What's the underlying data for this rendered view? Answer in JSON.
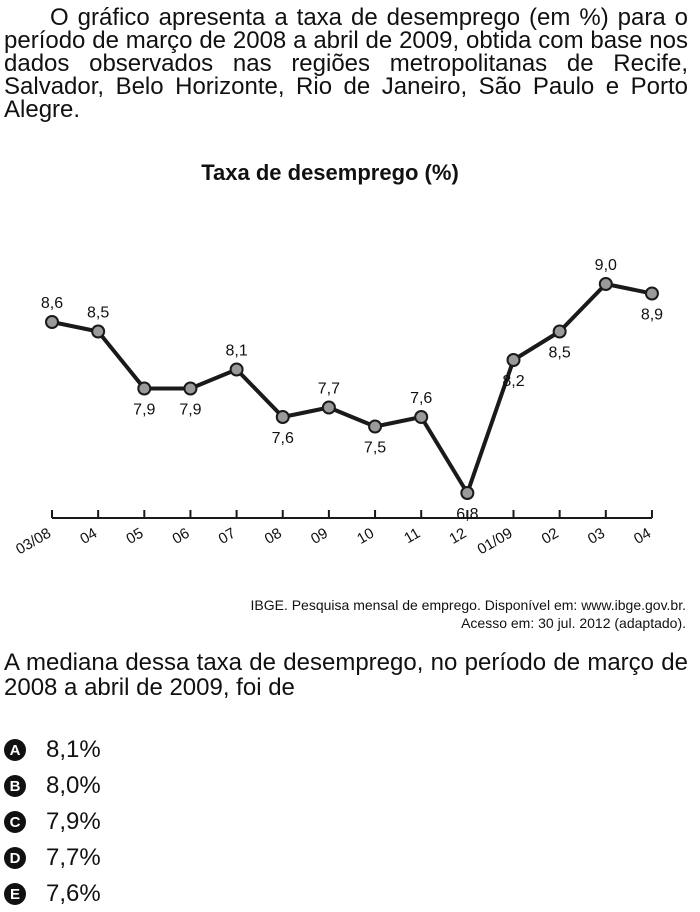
{
  "intro": "O gráfico apresenta a taxa de desemprego (em %) para o período de março de 2008 a abril de 2009, obtida com base nos dados observados nas regiões metropolitanas de Recife, Salvador, Belo Horizonte, Rio de Janeiro, São Paulo e Porto Alegre.",
  "chart_data": {
    "type": "line",
    "title": "Taxa de desemprego (%)",
    "categories": [
      "03/08",
      "04",
      "05",
      "06",
      "07",
      "08",
      "09",
      "10",
      "11",
      "12",
      "01/09",
      "02",
      "03",
      "04"
    ],
    "values": [
      8.6,
      8.5,
      7.9,
      7.9,
      8.1,
      7.6,
      7.7,
      7.5,
      7.6,
      6.8,
      8.2,
      8.5,
      9.0,
      8.9
    ],
    "data_labels": [
      "8,6",
      "8,5",
      "7,9",
      "7,9",
      "8,1",
      "7,6",
      "7,7",
      "7,5",
      "7,6",
      "6,8",
      "8,2",
      "8,5",
      "9,0",
      "8,9"
    ],
    "label_position": [
      "above",
      "above",
      "below",
      "below",
      "above",
      "below",
      "above",
      "below",
      "above",
      "below",
      "below",
      "below",
      "above",
      "below"
    ],
    "grid": false,
    "colors": {
      "line": "#1a1a1a",
      "marker": "#9a9a9a"
    }
  },
  "source": {
    "line1": "IBGE. Pesquisa mensal de emprego. Disponível em: www.ibge.gov.br.",
    "line2": "Acesso em: 30 jul. 2012 (adaptado)."
  },
  "question": "A mediana dessa taxa de desemprego, no período de março de 2008 a abril de 2009, foi de",
  "options": [
    {
      "letter": "A",
      "text": "8,1%"
    },
    {
      "letter": "B",
      "text": "8,0%"
    },
    {
      "letter": "C",
      "text": "7,9%"
    },
    {
      "letter": "D",
      "text": "7,7%"
    },
    {
      "letter": "E",
      "text": "7,6%"
    }
  ]
}
